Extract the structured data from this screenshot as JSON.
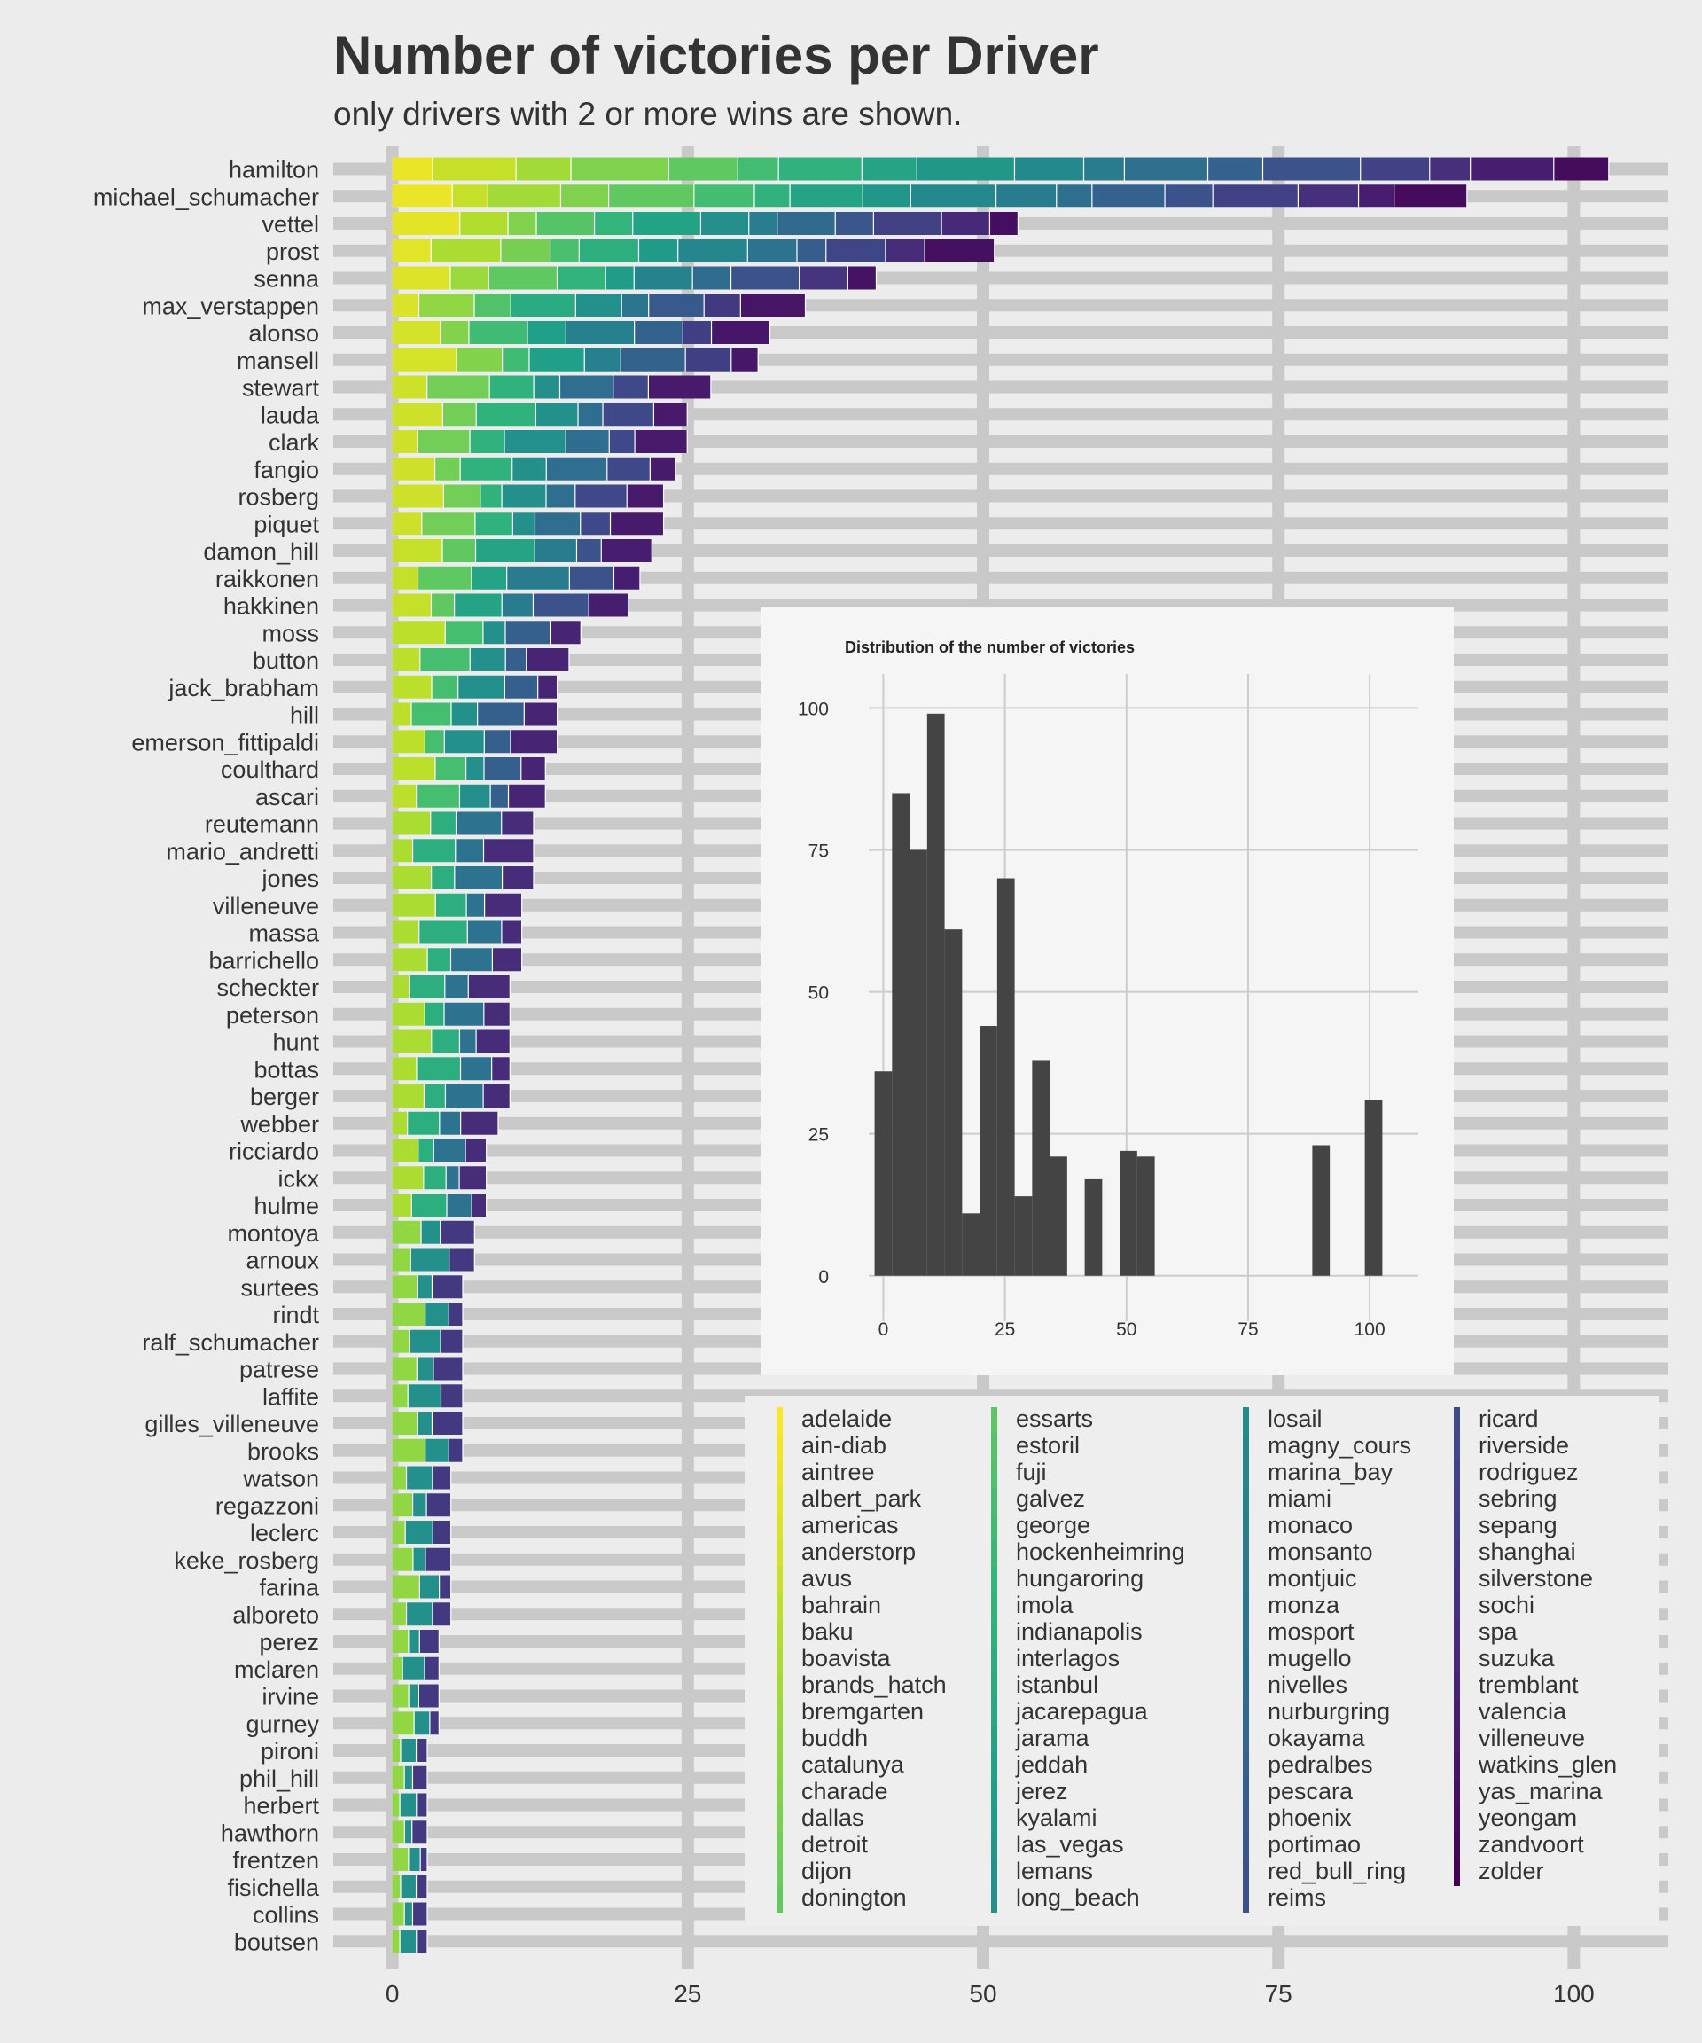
{
  "title": "Number of victories per Driver",
  "subtitle": "only drivers with 2 or more wins are shown.",
  "chart_data": [
    {
      "type": "bar",
      "orientation": "horizontal",
      "stacked": true,
      "stack_by": "circuit",
      "categories": [
        "hamilton",
        "michael_schumacher",
        "vettel",
        "prost",
        "senna",
        "max_verstappen",
        "alonso",
        "mansell",
        "stewart",
        "lauda",
        "clark",
        "fangio",
        "rosberg",
        "piquet",
        "damon_hill",
        "raikkonen",
        "hakkinen",
        "moss",
        "button",
        "jack_brabham",
        "hill",
        "emerson_fittipaldi",
        "coulthard",
        "ascari",
        "reutemann",
        "mario_andretti",
        "jones",
        "villeneuve",
        "massa",
        "barrichello",
        "scheckter",
        "peterson",
        "hunt",
        "bottas",
        "berger",
        "webber",
        "ricciardo",
        "ickx",
        "hulme",
        "montoya",
        "arnoux",
        "surtees",
        "rindt",
        "ralf_schumacher",
        "patrese",
        "laffite",
        "gilles_villeneuve",
        "brooks",
        "watson",
        "regazzoni",
        "leclerc",
        "keke_rosberg",
        "farina",
        "alboreto",
        "perez",
        "mclaren",
        "irvine",
        "gurney",
        "pironi",
        "phil_hill",
        "herbert",
        "hawthorn",
        "frentzen",
        "fisichella",
        "collins",
        "boutsen"
      ],
      "values": [
        103,
        91,
        53,
        51,
        41,
        35,
        32,
        31,
        27,
        25,
        25,
        24,
        23,
        23,
        22,
        21,
        20,
        16,
        15,
        14,
        14,
        14,
        13,
        13,
        12,
        12,
        12,
        11,
        11,
        11,
        10,
        10,
        10,
        10,
        10,
        9,
        8,
        8,
        8,
        7,
        7,
        6,
        6,
        6,
        6,
        6,
        6,
        6,
        5,
        5,
        5,
        5,
        5,
        5,
        4,
        4,
        4,
        4,
        3,
        3,
        3,
        3,
        3,
        3,
        3,
        3
      ],
      "xlim": [
        -5,
        108
      ],
      "x_ticks": [
        "0",
        "25",
        "50",
        "75",
        "100"
      ],
      "grid": true,
      "legend": {
        "title": "",
        "placement": "bottom-right",
        "circuits": [
          "adelaide",
          "ain-diab",
          "aintree",
          "albert_park",
          "americas",
          "anderstorp",
          "avus",
          "bahrain",
          "baku",
          "boavista",
          "brands_hatch",
          "bremgarten",
          "buddh",
          "catalunya",
          "charade",
          "dallas",
          "detroit",
          "dijon",
          "donington",
          "essarts",
          "estoril",
          "fuji",
          "galvez",
          "george",
          "hockenheimring",
          "hungaroring",
          "imola",
          "indianapolis",
          "interlagos",
          "istanbul",
          "jacarepagua",
          "jarama",
          "jeddah",
          "jerez",
          "kyalami",
          "las_vegas",
          "lemans",
          "long_beach",
          "losail",
          "magny_cours",
          "marina_bay",
          "miami",
          "monaco",
          "monsanto",
          "montjuic",
          "monza",
          "mosport",
          "mugello",
          "nivelles",
          "nurburgring",
          "okayama",
          "pedralbes",
          "pescara",
          "phoenix",
          "portimao",
          "red_bull_ring",
          "reims",
          "ricard",
          "riverside",
          "rodriguez",
          "sebring",
          "sepang",
          "shanghai",
          "silverstone",
          "sochi",
          "spa",
          "suzuka",
          "tremblant",
          "valencia",
          "villeneuve",
          "watkins_glen",
          "yas_marina",
          "yeongam",
          "zandvoort",
          "zolder"
        ]
      },
      "palette": "viridis"
    },
    {
      "type": "bar",
      "subtype": "histogram",
      "title": "Distribution of the number of victories",
      "bins": [
        {
          "x": 0,
          "count": 36
        },
        {
          "x": 3.6,
          "count": 85
        },
        {
          "x": 7.2,
          "count": 75
        },
        {
          "x": 10.8,
          "count": 99
        },
        {
          "x": 14.4,
          "count": 61
        },
        {
          "x": 18,
          "count": 11
        },
        {
          "x": 21.6,
          "count": 44
        },
        {
          "x": 25.2,
          "count": 70
        },
        {
          "x": 28.8,
          "count": 14
        },
        {
          "x": 32.4,
          "count": 38
        },
        {
          "x": 36,
          "count": 21
        },
        {
          "x": 39.6,
          "count": 0
        },
        {
          "x": 43.2,
          "count": 17
        },
        {
          "x": 46.8,
          "count": 0
        },
        {
          "x": 50.4,
          "count": 22
        },
        {
          "x": 54,
          "count": 21
        },
        {
          "x": 90,
          "count": 23
        },
        {
          "x": 100.8,
          "count": 31
        }
      ],
      "bin_width": 3.6,
      "xlim": [
        -3,
        110
      ],
      "ylim": [
        -8,
        106
      ],
      "x_ticks": [
        "0",
        "25",
        "50",
        "75",
        "100"
      ],
      "y_ticks": [
        "0",
        "25",
        "50",
        "75",
        "100"
      ],
      "bar_color": "#444444",
      "grid": true
    }
  ]
}
